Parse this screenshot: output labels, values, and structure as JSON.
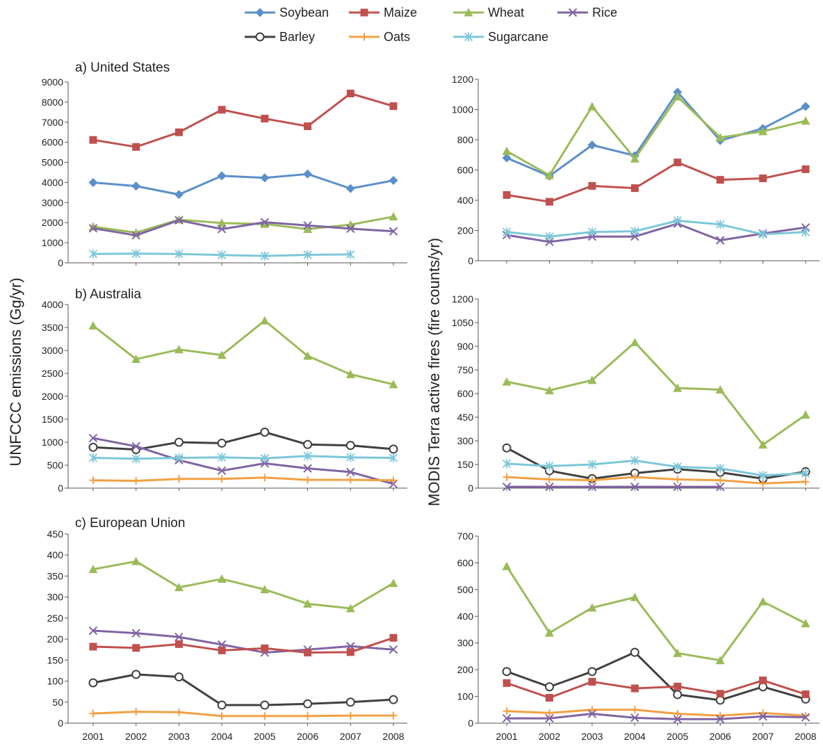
{
  "left_axis_label": "UNFCCC emissions (Gg/yr)",
  "right_axis_label": "MODIS Terra active fires (fire counts/yr)",
  "legend": [
    {
      "key": "soybean",
      "label": "Soybean",
      "color": "#5B8FC9",
      "marker": "diamond"
    },
    {
      "key": "maize",
      "label": "Maize",
      "color": "#C0504D",
      "marker": "square"
    },
    {
      "key": "wheat",
      "label": "Wheat",
      "color": "#9BBB59",
      "marker": "triangle"
    },
    {
      "key": "rice",
      "label": "Rice",
      "color": "#8064A2",
      "marker": "x"
    },
    {
      "key": "barley",
      "label": "Barley",
      "color": "#404040",
      "marker": "circle"
    },
    {
      "key": "oats",
      "label": "Oats",
      "color": "#F2A042",
      "marker": "plus"
    },
    {
      "key": "sugarcane",
      "label": "Sugarcane",
      "color": "#7CC7D9",
      "marker": "star"
    }
  ],
  "chart_data": [
    {
      "id": "us-unfccc",
      "type": "line",
      "title": "a) United States",
      "x": [
        2001,
        2002,
        2003,
        2004,
        2005,
        2006,
        2007,
        2008
      ],
      "ylim": [
        0,
        9000
      ],
      "yticks": [
        0,
        1000,
        2000,
        3000,
        4000,
        5000,
        6000,
        7000,
        8000,
        9000
      ],
      "series": [
        {
          "name": "Soybean",
          "values": [
            4000,
            3820,
            3400,
            4330,
            4230,
            4420,
            3700,
            4100
          ]
        },
        {
          "name": "Maize",
          "values": [
            6120,
            5770,
            6500,
            7620,
            7180,
            6800,
            8430,
            7800
          ]
        },
        {
          "name": "Wheat",
          "values": [
            1800,
            1500,
            2150,
            1980,
            1930,
            1680,
            1900,
            2300
          ]
        },
        {
          "name": "Rice",
          "values": [
            1720,
            1370,
            2120,
            1680,
            2020,
            1860,
            1700,
            1570
          ]
        },
        {
          "name": "Sugarcane",
          "values": [
            440,
            460,
            440,
            390,
            340,
            400,
            420,
            null
          ]
        }
      ]
    },
    {
      "id": "us-modis",
      "type": "line",
      "title": "",
      "x": [
        2001,
        2002,
        2003,
        2004,
        2005,
        2006,
        2007,
        2008
      ],
      "ylim": [
        0,
        1200
      ],
      "yticks": [
        0,
        200,
        400,
        600,
        800,
        1000,
        1200
      ],
      "series": [
        {
          "name": "Soybean",
          "values": [
            680,
            560,
            765,
            695,
            1115,
            795,
            875,
            1020
          ]
        },
        {
          "name": "Maize",
          "values": [
            435,
            390,
            495,
            480,
            650,
            535,
            545,
            605
          ]
        },
        {
          "name": "Wheat",
          "values": [
            725,
            565,
            1020,
            675,
            1085,
            815,
            855,
            925
          ]
        },
        {
          "name": "Rice",
          "values": [
            170,
            125,
            160,
            160,
            245,
            135,
            180,
            220
          ]
        },
        {
          "name": "Sugarcane",
          "values": [
            190,
            160,
            190,
            195,
            265,
            240,
            175,
            190
          ]
        }
      ]
    },
    {
      "id": "au-unfccc",
      "type": "line",
      "title": "b) Australia",
      "x": [
        2001,
        2002,
        2003,
        2004,
        2005,
        2006,
        2007,
        2008
      ],
      "ylim": [
        0,
        4000
      ],
      "yticks": [
        0,
        500,
        1000,
        1500,
        2000,
        2500,
        3000,
        3500,
        4000
      ],
      "series": [
        {
          "name": "Wheat",
          "values": [
            3540,
            2810,
            3020,
            2900,
            3650,
            2880,
            2480,
            2260
          ]
        },
        {
          "name": "Barley",
          "values": [
            890,
            840,
            1000,
            980,
            1220,
            950,
            930,
            850
          ]
        },
        {
          "name": "Rice",
          "values": [
            1090,
            910,
            610,
            380,
            540,
            430,
            350,
            90
          ]
        },
        {
          "name": "Sugarcane",
          "values": [
            660,
            640,
            660,
            670,
            650,
            700,
            670,
            660
          ]
        },
        {
          "name": "Oats",
          "values": [
            170,
            160,
            200,
            200,
            230,
            180,
            180,
            170
          ]
        }
      ]
    },
    {
      "id": "au-modis",
      "type": "line",
      "title": "",
      "x": [
        2001,
        2002,
        2003,
        2004,
        2005,
        2006,
        2007,
        2008
      ],
      "ylim": [
        0,
        1200
      ],
      "yticks": [
        0,
        150,
        300,
        450,
        600,
        750,
        900,
        1050,
        1200
      ],
      "series": [
        {
          "name": "Wheat",
          "values": [
            675,
            620,
            685,
            925,
            635,
            625,
            275,
            465
          ]
        },
        {
          "name": "Barley",
          "values": [
            255,
            110,
            60,
            95,
            120,
            100,
            60,
            105
          ]
        },
        {
          "name": "Sugarcane",
          "values": [
            155,
            140,
            150,
            175,
            135,
            125,
            80,
            95
          ]
        },
        {
          "name": "Oats",
          "values": [
            70,
            55,
            50,
            70,
            55,
            50,
            30,
            40
          ]
        },
        {
          "name": "Rice",
          "values": [
            8,
            8,
            8,
            8,
            8,
            8,
            null,
            null
          ]
        }
      ]
    },
    {
      "id": "eu-unfccc",
      "type": "line",
      "title": "c) European Union",
      "x": [
        2001,
        2002,
        2003,
        2004,
        2005,
        2006,
        2007,
        2008
      ],
      "ylim": [
        0,
        450
      ],
      "yticks": [
        0,
        50,
        100,
        150,
        200,
        250,
        300,
        350,
        400,
        450
      ],
      "series": [
        {
          "name": "Wheat",
          "values": [
            366,
            385,
            323,
            343,
            318,
            284,
            273,
            333
          ]
        },
        {
          "name": "Rice",
          "values": [
            220,
            214,
            205,
            187,
            168,
            175,
            183,
            175
          ]
        },
        {
          "name": "Maize",
          "values": [
            182,
            179,
            188,
            173,
            178,
            168,
            169,
            203
          ]
        },
        {
          "name": "Barley",
          "values": [
            96,
            116,
            110,
            43,
            43,
            46,
            50,
            56
          ]
        },
        {
          "name": "Oats",
          "values": [
            23,
            27,
            26,
            17,
            17,
            17,
            18,
            18
          ]
        }
      ]
    },
    {
      "id": "eu-modis",
      "type": "line",
      "title": "",
      "x": [
        2001,
        2002,
        2003,
        2004,
        2005,
        2006,
        2007,
        2008
      ],
      "xticks": [
        "2001",
        "2002",
        "2003",
        "2004",
        "2005",
        "2006",
        "2007",
        "2008"
      ],
      "ylim": [
        0,
        700
      ],
      "yticks": [
        0,
        100,
        200,
        300,
        400,
        500,
        600,
        700
      ],
      "series": [
        {
          "name": "Wheat",
          "values": [
            587,
            338,
            432,
            471,
            262,
            235,
            455,
            373
          ]
        },
        {
          "name": "Barley",
          "values": [
            193,
            136,
            193,
            265,
            107,
            86,
            136,
            90
          ]
        },
        {
          "name": "Maize",
          "values": [
            150,
            95,
            155,
            130,
            137,
            110,
            160,
            108
          ]
        },
        {
          "name": "Oats",
          "values": [
            45,
            38,
            50,
            50,
            35,
            28,
            38,
            28
          ]
        },
        {
          "name": "Rice",
          "values": [
            18,
            18,
            35,
            20,
            15,
            15,
            25,
            22
          ]
        }
      ]
    }
  ]
}
